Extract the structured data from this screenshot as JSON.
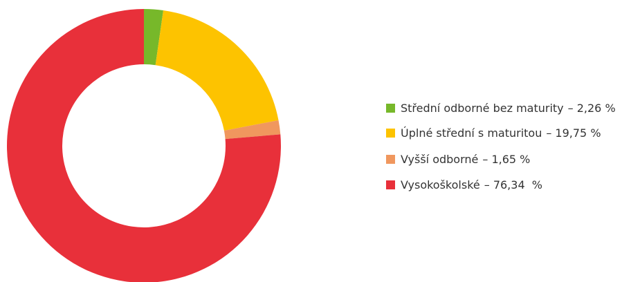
{
  "chart_data": {
    "type": "donut",
    "categories": [
      "Střední odborné bez maturity",
      "Úplné střední s maturitou",
      "Vyšší odborné",
      "Vysokoškolské"
    ],
    "values": [
      2.26,
      19.75,
      1.65,
      76.34
    ],
    "value_labels": [
      "– 2,26 %",
      "– 19,75 %",
      "– 1,65 %",
      "– 76,34  %"
    ],
    "colors": [
      "#77b82a",
      "#fdc300",
      "#f0975e",
      "#e8303a"
    ],
    "legend": "right"
  }
}
